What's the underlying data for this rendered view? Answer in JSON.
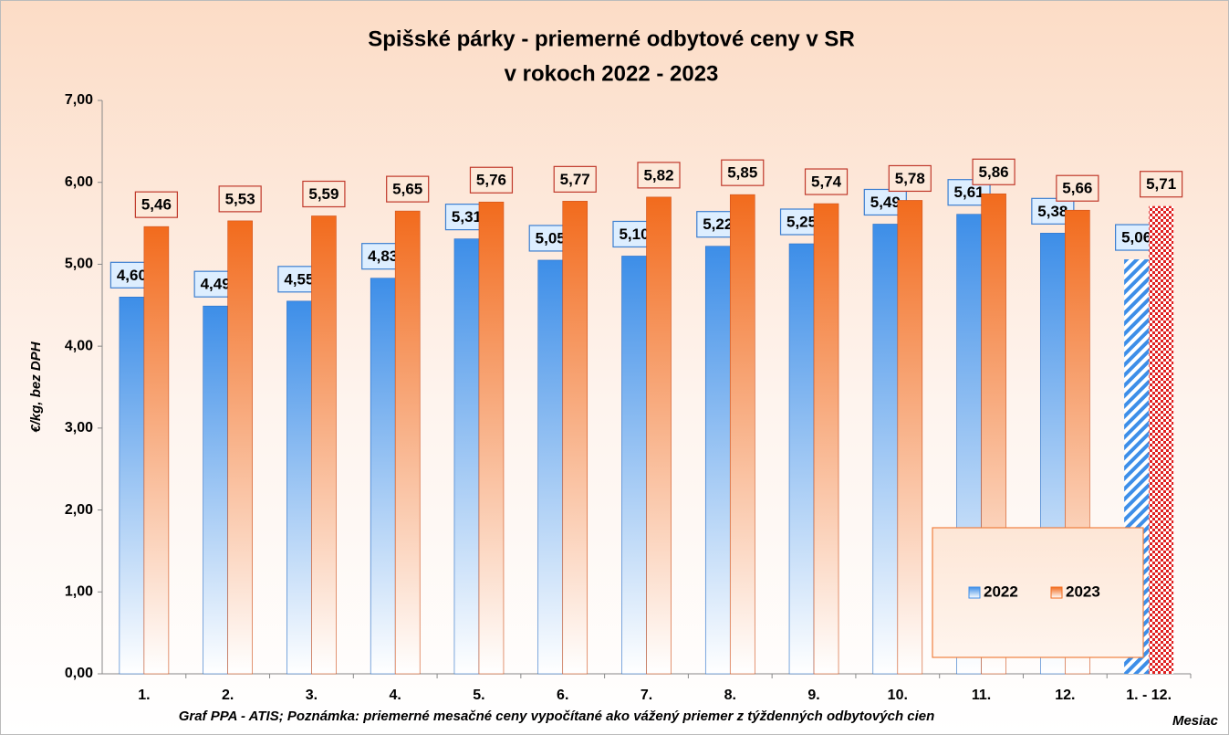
{
  "chart_data": {
    "type": "bar",
    "title": "Spišské párky - priemerné odbytové ceny v SR",
    "subtitle": "v rokoch 2022 - 2023",
    "y_label": "€/kg, bez DPH",
    "x_label": "Mesiac",
    "note": "Graf PPA - ATIS; Poznámka: priemerné mesačné ceny vypočítané ako vážený priemer z týždenných odbytových cien",
    "categories": [
      "1.",
      "2.",
      "3.",
      "4.",
      "5.",
      "6.",
      "7.",
      "8.",
      "9.",
      "10.",
      "11.",
      "12.",
      "1. - 12."
    ],
    "series": [
      {
        "name": "2022",
        "color": "#3d8ee8",
        "values": [
          4.6,
          4.49,
          4.55,
          4.83,
          5.31,
          5.05,
          5.1,
          5.22,
          5.25,
          5.49,
          5.61,
          5.38,
          5.06
        ],
        "value_labels": [
          "4,60",
          "4,49",
          "4,55",
          "4,83",
          "5,31",
          "5,05",
          "5,10",
          "5,22",
          "5,25",
          "5,49",
          "5,61",
          "5,38",
          "5,06"
        ]
      },
      {
        "name": "2023",
        "color": "#f26b1d",
        "values": [
          5.46,
          5.53,
          5.59,
          5.65,
          5.76,
          5.77,
          5.82,
          5.85,
          5.74,
          5.78,
          5.86,
          5.66,
          5.71
        ],
        "value_labels": [
          "5,46",
          "5,53",
          "5,59",
          "5,65",
          "5,76",
          "5,77",
          "5,82",
          "5,85",
          "5,74",
          "5,78",
          "5,86",
          "5,66",
          "5,71"
        ]
      }
    ],
    "ylim": [
      0,
      7
    ],
    "yticks": [
      {
        "value": 0,
        "label": "0,00"
      },
      {
        "value": 1,
        "label": "1,00"
      },
      {
        "value": 2,
        "label": "2,00"
      },
      {
        "value": 3,
        "label": "3,00"
      },
      {
        "value": 4,
        "label": "4,00"
      },
      {
        "value": 5,
        "label": "5,00"
      },
      {
        "value": 6,
        "label": "6,00"
      },
      {
        "value": 7,
        "label": "7,00"
      }
    ],
    "grid": false,
    "legend": "lower right"
  }
}
